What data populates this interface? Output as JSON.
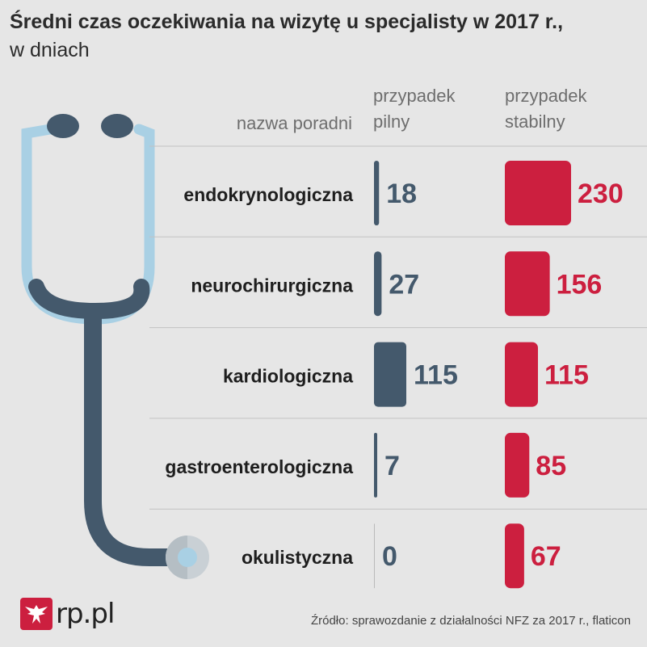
{
  "title": "Średni czas oczekiwania na wizytę u specjalisty w 2017 r.,",
  "subtitle": "w dniach",
  "headers": {
    "category": "nazwa poradni",
    "urgent_line1": "przypadek",
    "urgent_line2": "pilny",
    "stable_line1": "przypadek",
    "stable_line2": "stabilny"
  },
  "source": "Źródło: sprawozdanie z działalności NFZ za 2017 r., flaticon",
  "logo_text": "rp.pl",
  "colors": {
    "urgent": "#44596c",
    "stable": "#cc1f3f",
    "background": "#e6e6e6",
    "stethoscope_tube": "#44596c",
    "stethoscope_light": "#a9d0e4"
  },
  "chart_data": {
    "type": "bar",
    "categories": [
      "endokrynologiczna",
      "neurochirurgiczna",
      "kardiologiczna",
      "gastroenterologiczna",
      "okulistyczna"
    ],
    "series": [
      {
        "name": "przypadek pilny",
        "values": [
          18,
          27,
          115,
          7,
          0
        ]
      },
      {
        "name": "przypadek stabilny",
        "values": [
          230,
          156,
          115,
          85,
          67
        ]
      }
    ],
    "title": "Średni czas oczekiwania na wizytę u specjalisty w 2017 r.,",
    "subtitle": "w dniach",
    "grid": true,
    "legend": "column headers"
  }
}
